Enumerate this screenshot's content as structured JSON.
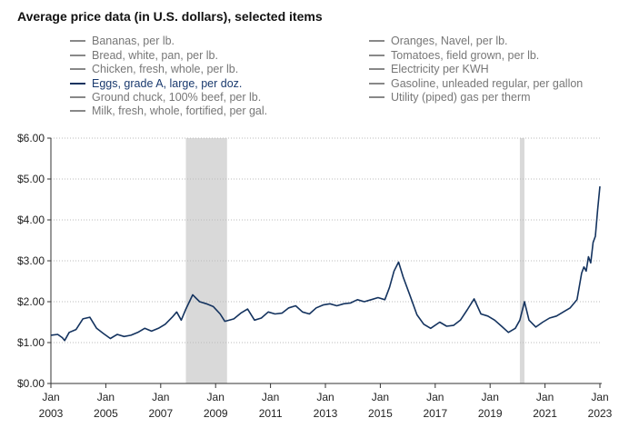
{
  "title": "Average price data (in U.S. dollars), selected items",
  "legend": {
    "left": [
      {
        "label": "Bananas, per lb.",
        "active": false
      },
      {
        "label": "Bread, white, pan, per lb.",
        "active": false
      },
      {
        "label": "Chicken, fresh, whole, per lb.",
        "active": false
      },
      {
        "label": "Eggs, grade A, large, per doz.",
        "active": true
      },
      {
        "label": "Ground chuck, 100% beef, per lb.",
        "active": false
      },
      {
        "label": "Milk, fresh, whole, fortified, per gal.",
        "active": false
      }
    ],
    "right": [
      {
        "label": "Oranges, Navel, per lb.",
        "active": false
      },
      {
        "label": "Tomatoes, field grown, per lb.",
        "active": false
      },
      {
        "label": "Electricity per KWH",
        "active": false
      },
      {
        "label": "Gasoline, unleaded regular, per gallon",
        "active": false
      },
      {
        "label": "Utility (piped) gas per therm",
        "active": false
      }
    ]
  },
  "colors": {
    "line": "#14335f",
    "recession": "#d9d9d9",
    "grid": "#bbbbbb",
    "axis": "#333333",
    "inactive_legend": "#777777"
  },
  "chart_data": {
    "type": "line",
    "title": "Average price data (in U.S. dollars), selected items",
    "ylim": [
      0,
      6
    ],
    "y_ticks": [
      "$0.00",
      "$1.00",
      "$2.00",
      "$3.00",
      "$4.00",
      "$5.00",
      "$6.00"
    ],
    "y_tick_values": [
      0,
      1,
      2,
      3,
      4,
      5,
      6
    ],
    "x_range": [
      "2003-01",
      "2023-01"
    ],
    "x_ticks": [
      {
        "month": "Jan",
        "year": "2003",
        "date": "2003-01"
      },
      {
        "month": "Jan",
        "year": "2005",
        "date": "2005-01"
      },
      {
        "month": "Jan",
        "year": "2007",
        "date": "2007-01"
      },
      {
        "month": "Jan",
        "year": "2009",
        "date": "2009-01"
      },
      {
        "month": "Jan",
        "year": "2011",
        "date": "2011-01"
      },
      {
        "month": "Jan",
        "year": "2013",
        "date": "2013-01"
      },
      {
        "month": "Jan",
        "year": "2015",
        "date": "2015-01"
      },
      {
        "month": "Jan",
        "year": "2017",
        "date": "2017-01"
      },
      {
        "month": "Jan",
        "year": "2019",
        "date": "2019-01"
      },
      {
        "month": "Jan",
        "year": "2021",
        "date": "2021-01"
      },
      {
        "month": "Jan",
        "year": "2023",
        "date": "2023-01"
      }
    ],
    "recessions": [
      {
        "start": "2007-12",
        "end": "2009-06"
      },
      {
        "start": "2020-02",
        "end": "2020-04"
      }
    ],
    "grid": "horizontal dotted",
    "series": [
      {
        "name": "Eggs, grade A, large, per doz.",
        "points": [
          [
            "2003-01",
            1.18
          ],
          [
            "2003-04",
            1.2
          ],
          [
            "2003-06",
            1.12
          ],
          [
            "2003-07",
            1.05
          ],
          [
            "2003-09",
            1.25
          ],
          [
            "2003-12",
            1.32
          ],
          [
            "2004-03",
            1.58
          ],
          [
            "2004-06",
            1.62
          ],
          [
            "2004-09",
            1.35
          ],
          [
            "2004-12",
            1.22
          ],
          [
            "2005-03",
            1.1
          ],
          [
            "2005-06",
            1.2
          ],
          [
            "2005-09",
            1.15
          ],
          [
            "2005-12",
            1.18
          ],
          [
            "2006-03",
            1.25
          ],
          [
            "2006-06",
            1.35
          ],
          [
            "2006-09",
            1.28
          ],
          [
            "2006-12",
            1.35
          ],
          [
            "2007-03",
            1.45
          ],
          [
            "2007-06",
            1.62
          ],
          [
            "2007-08",
            1.75
          ],
          [
            "2007-10",
            1.55
          ],
          [
            "2007-12",
            1.82
          ],
          [
            "2008-03",
            2.17
          ],
          [
            "2008-06",
            2.0
          ],
          [
            "2008-09",
            1.95
          ],
          [
            "2008-12",
            1.88
          ],
          [
            "2009-03",
            1.7
          ],
          [
            "2009-05",
            1.52
          ],
          [
            "2009-09",
            1.58
          ],
          [
            "2009-12",
            1.72
          ],
          [
            "2010-03",
            1.82
          ],
          [
            "2010-06",
            1.55
          ],
          [
            "2010-09",
            1.6
          ],
          [
            "2010-12",
            1.75
          ],
          [
            "2011-03",
            1.7
          ],
          [
            "2011-06",
            1.72
          ],
          [
            "2011-09",
            1.85
          ],
          [
            "2011-12",
            1.9
          ],
          [
            "2012-03",
            1.75
          ],
          [
            "2012-06",
            1.7
          ],
          [
            "2012-09",
            1.85
          ],
          [
            "2012-12",
            1.92
          ],
          [
            "2013-03",
            1.95
          ],
          [
            "2013-06",
            1.9
          ],
          [
            "2013-09",
            1.95
          ],
          [
            "2013-12",
            1.97
          ],
          [
            "2014-03",
            2.05
          ],
          [
            "2014-06",
            2.0
          ],
          [
            "2014-09",
            2.05
          ],
          [
            "2014-12",
            2.1
          ],
          [
            "2015-03",
            2.05
          ],
          [
            "2015-05",
            2.35
          ],
          [
            "2015-07",
            2.75
          ],
          [
            "2015-09",
            2.97
          ],
          [
            "2015-11",
            2.6
          ],
          [
            "2016-02",
            2.15
          ],
          [
            "2016-05",
            1.68
          ],
          [
            "2016-08",
            1.45
          ],
          [
            "2016-11",
            1.35
          ],
          [
            "2017-03",
            1.5
          ],
          [
            "2017-06",
            1.4
          ],
          [
            "2017-09",
            1.42
          ],
          [
            "2017-12",
            1.55
          ],
          [
            "2018-03",
            1.8
          ],
          [
            "2018-06",
            2.07
          ],
          [
            "2018-09",
            1.7
          ],
          [
            "2018-12",
            1.65
          ],
          [
            "2019-03",
            1.55
          ],
          [
            "2019-06",
            1.4
          ],
          [
            "2019-09",
            1.25
          ],
          [
            "2019-12",
            1.35
          ],
          [
            "2020-02",
            1.55
          ],
          [
            "2020-04",
            2.0
          ],
          [
            "2020-06",
            1.55
          ],
          [
            "2020-09",
            1.38
          ],
          [
            "2020-12",
            1.5
          ],
          [
            "2021-03",
            1.6
          ],
          [
            "2021-06",
            1.65
          ],
          [
            "2021-09",
            1.75
          ],
          [
            "2021-12",
            1.85
          ],
          [
            "2022-03",
            2.05
          ],
          [
            "2022-05",
            2.7
          ],
          [
            "2022-06",
            2.85
          ],
          [
            "2022-07",
            2.75
          ],
          [
            "2022-08",
            3.1
          ],
          [
            "2022-09",
            2.95
          ],
          [
            "2022-10",
            3.45
          ],
          [
            "2022-11",
            3.6
          ],
          [
            "2022-12",
            4.25
          ],
          [
            "2023-01",
            4.82
          ]
        ]
      }
    ]
  }
}
